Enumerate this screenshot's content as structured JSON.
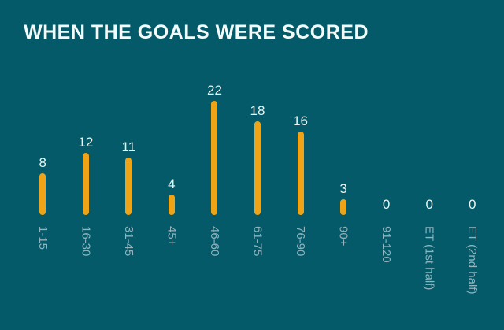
{
  "title": "WHEN THE GOALS WERE SCORED",
  "colors": {
    "background": "#045A68",
    "bar": "#EEA416",
    "value_label": "#E9F5F3",
    "tick_label": "#93B3BD",
    "title": "#F2FBFA"
  },
  "chart_data": {
    "type": "bar",
    "title": "WHEN THE GOALS WERE SCORED",
    "categories": [
      "1-15",
      "16-30",
      "31-45",
      "45+",
      "46-60",
      "61-75",
      "76-90",
      "90+",
      "91-120",
      "ET (1st half)",
      "ET (2nd half)"
    ],
    "values": [
      8,
      12,
      11,
      4,
      22,
      18,
      16,
      3,
      0,
      0,
      0
    ],
    "xlabel": "",
    "ylabel": "",
    "ylim": [
      0,
      22
    ],
    "grid": false,
    "legend": false,
    "orientation": "vertical",
    "value_labels_shown": true,
    "tick_label_rotation_deg": 90
  }
}
